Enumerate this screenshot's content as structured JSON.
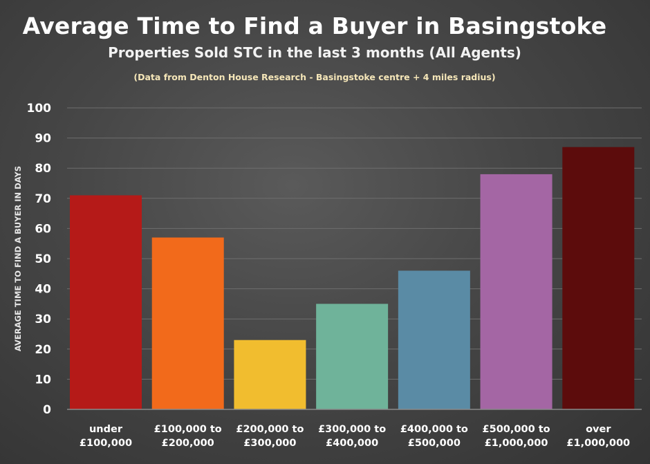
{
  "chart_data": {
    "type": "bar",
    "title": "Average Time to Find a Buyer in Basingstoke",
    "subtitle": "Properties Sold STC in the last 3 months (All Agents)",
    "note": "(Data from Denton House Research - Basingstoke centre + 4 miles radius)",
    "xlabel": "",
    "ylabel": "AVERAGE TIME TO FIND A BUYER IN DAYS",
    "ylim": [
      0,
      100
    ],
    "yticks": [
      0,
      10,
      20,
      30,
      40,
      50,
      60,
      70,
      80,
      90,
      100
    ],
    "grid": true,
    "categories": [
      [
        "under",
        "£100,000"
      ],
      [
        "£100,000 to",
        "£200,000"
      ],
      [
        "£200,000 to",
        "£300,000"
      ],
      [
        "£300,000 to",
        "£400,000"
      ],
      [
        "£400,000 to",
        "£500,000"
      ],
      [
        "£500,000 to",
        "£1,000,000"
      ],
      [
        "over",
        "£1,000,000"
      ]
    ],
    "values": [
      71,
      57,
      23,
      35,
      46,
      78,
      87
    ],
    "colors": [
      "#b51a18",
      "#f26a1b",
      "#f1bd2f",
      "#6fb39a",
      "#5a8ba5",
      "#a466a4",
      "#5c0c0c"
    ]
  }
}
